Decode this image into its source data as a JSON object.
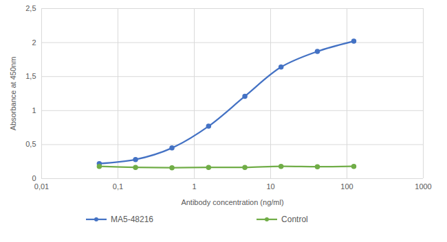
{
  "chart_data": {
    "type": "line",
    "x_label": "Antibody concentration (ng/ml)",
    "y_label": "Absorbance at 450nm",
    "x": [
      0.057,
      0.17,
      0.51,
      1.54,
      4.6,
      13.7,
      41,
      123
    ],
    "series": [
      {
        "name": "MA5-48216",
        "color": "#4472c4",
        "marker": "circle",
        "values": [
          0.22,
          0.28,
          0.45,
          0.77,
          1.21,
          1.64,
          1.87,
          2.02
        ]
      },
      {
        "name": "Control",
        "color": "#70ad47",
        "marker": "circle",
        "values": [
          0.18,
          0.165,
          0.16,
          0.165,
          0.165,
          0.18,
          0.175,
          0.18
        ]
      }
    ],
    "log": "x",
    "xlim": [
      0.01,
      1000
    ],
    "xticks": [
      {
        "value": 0.01,
        "label": "0,01"
      },
      {
        "value": 0.1,
        "label": "0,1"
      },
      1,
      10,
      100,
      1000
    ],
    "ylim": [
      0,
      2.5
    ],
    "yticks": [
      0,
      {
        "value": 0.5,
        "label": "0,5"
      },
      1,
      {
        "value": 1.5,
        "label": "1,5"
      },
      2,
      {
        "value": 2.5,
        "label": "2,5"
      }
    ],
    "grid": true,
    "legend": "bottom"
  }
}
